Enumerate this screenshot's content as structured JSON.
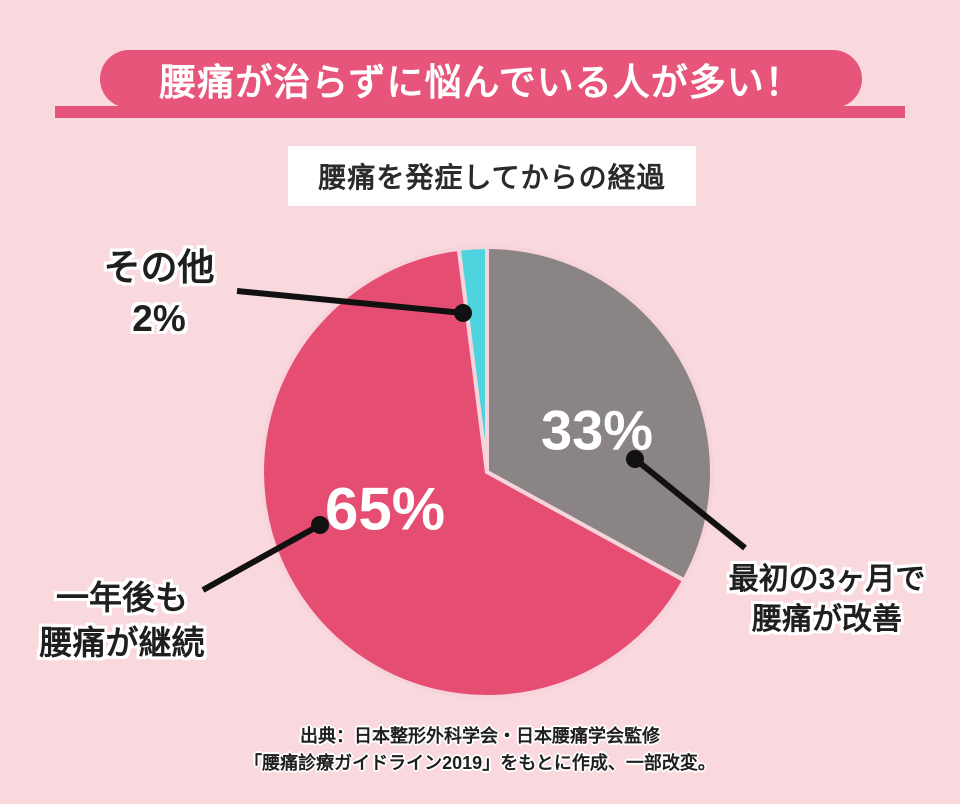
{
  "header": {
    "title": "腰痛が治らずに悩んでいる人が多い！"
  },
  "chart_data": {
    "type": "pie",
    "title": "腰痛を発症してからの経過",
    "direction": "clockwise",
    "start_angle_deg": 0,
    "legend_position": "none (direct callout labels with leader lines)",
    "gap_color": "#f7d4db",
    "slices": [
      {
        "label": "最初の3ヶ月で腰痛が改善",
        "value": 33,
        "pct_label": "33%",
        "color": "#8b8485"
      },
      {
        "label": "一年後も腰痛が継続",
        "value": 65,
        "pct_label": "65%",
        "color": "#e64d72"
      },
      {
        "label": "その他",
        "value": 2,
        "pct_label": "2%",
        "color": "#4dd4de"
      }
    ]
  },
  "callouts": {
    "other": {
      "line1": "その他",
      "line2": "2%"
    },
    "left": {
      "line1": "一年後も",
      "line2": "腰痛が継続"
    },
    "right": {
      "line1": "最初の3ヶ月で",
      "line2": "腰痛が改善"
    }
  },
  "source": {
    "line1": "出典：日本整形外科学会・日本腰痛学会監修",
    "line2": "「腰痛診療ガイドライン2019」をもとに作成、一部改変。"
  },
  "colors": {
    "background": "#f9d9de",
    "banner": "#e7567a",
    "banner_text": "#ffffff",
    "pie_pink": "#e64d72",
    "pie_gray": "#8b8485",
    "pie_cyan": "#4dd4de",
    "leader_line": "#111111",
    "pct_text": "#ffffff",
    "label_text": "#1f1f1f"
  }
}
